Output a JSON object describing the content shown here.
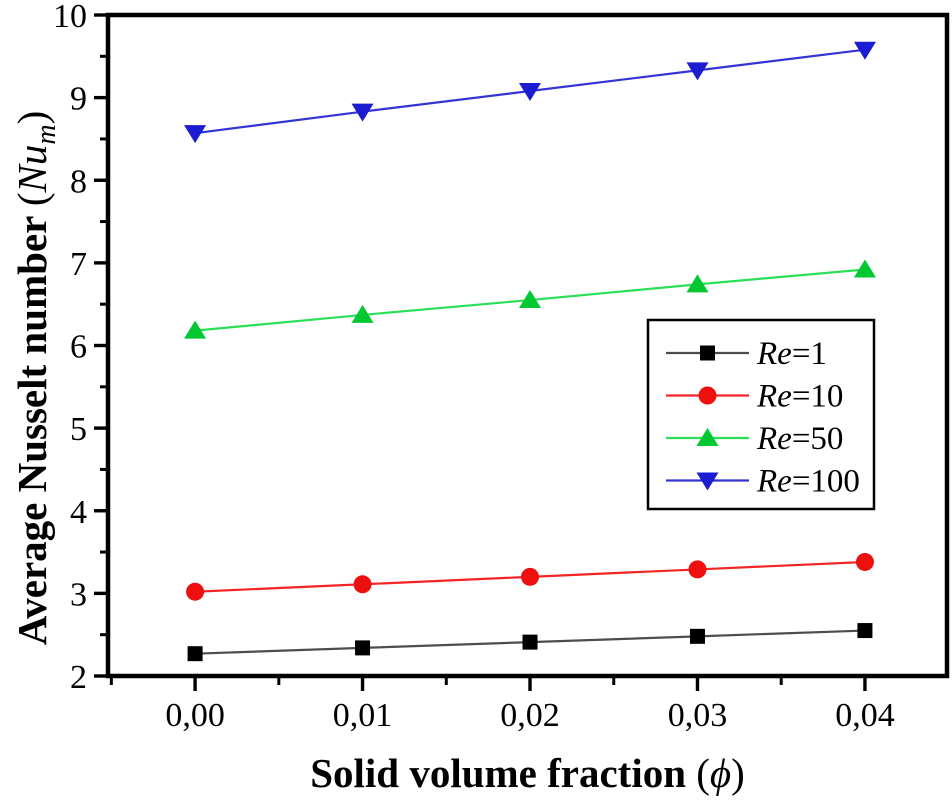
{
  "chart_data": {
    "type": "line",
    "title": "",
    "background": "#ffffff",
    "axis_color": "#000000",
    "grid": false,
    "x": [
      0,
      0.01,
      0.02,
      0.03,
      0.04
    ],
    "x_tick_labels": [
      "0,00",
      "0,01",
      "0,02",
      "0,03",
      "0,04"
    ],
    "x_minor_ticks": [
      -0.005,
      0.005,
      0.015,
      0.025,
      0.035
    ],
    "y_major_ticks": [
      2,
      3,
      4,
      5,
      6,
      7,
      8,
      9,
      10
    ],
    "y_tick_labels": [
      "2",
      "3",
      "4",
      "5",
      "6",
      "7",
      "8",
      "9",
      "10"
    ],
    "y_minor_ticks": [
      2.5,
      3.5,
      4.5,
      5.5,
      6.5,
      7.5,
      8.5,
      9.5
    ],
    "xlim": [
      -0.0052,
      0.0449
    ],
    "ylim": [
      2,
      10
    ],
    "xlabel": {
      "main": "Solid volume fraction",
      "paren_open": "(",
      "symbol": "ϕ",
      "paren_close": ")"
    },
    "ylabel": {
      "main": "Average Nusselt number",
      "paren_open": "(",
      "symbol": "Nu",
      "subscript": "m",
      "paren_close": ")"
    },
    "legend": {
      "position": "center-right",
      "border_color": "#000000",
      "background": "#ffffff",
      "labels": [
        "Re=1",
        "Re=10",
        "Re=50",
        "Re=100"
      ]
    },
    "series": [
      {
        "label": "Re=1",
        "marker": "square",
        "marker_color": "#000000",
        "line_color": "#4d4d4d",
        "values": [
          2.27,
          2.34,
          2.41,
          2.48,
          2.55
        ]
      },
      {
        "label": "Re=10",
        "marker": "circle",
        "marker_color": "#ee0f0f",
        "line_color": "#f42424",
        "values": [
          3.02,
          3.11,
          3.2,
          3.29,
          3.38
        ]
      },
      {
        "label": "Re=50",
        "marker": "triangle-up",
        "marker_color": "#00c830",
        "line_color": "#2bdf58",
        "values": [
          6.18,
          6.37,
          6.55,
          6.74,
          6.92
        ]
      },
      {
        "label": "Re=100",
        "marker": "triangle-down",
        "marker_color": "#1c1cd2",
        "line_color": "#3434d6",
        "values": [
          8.57,
          8.83,
          9.08,
          9.33,
          9.58
        ]
      }
    ]
  }
}
